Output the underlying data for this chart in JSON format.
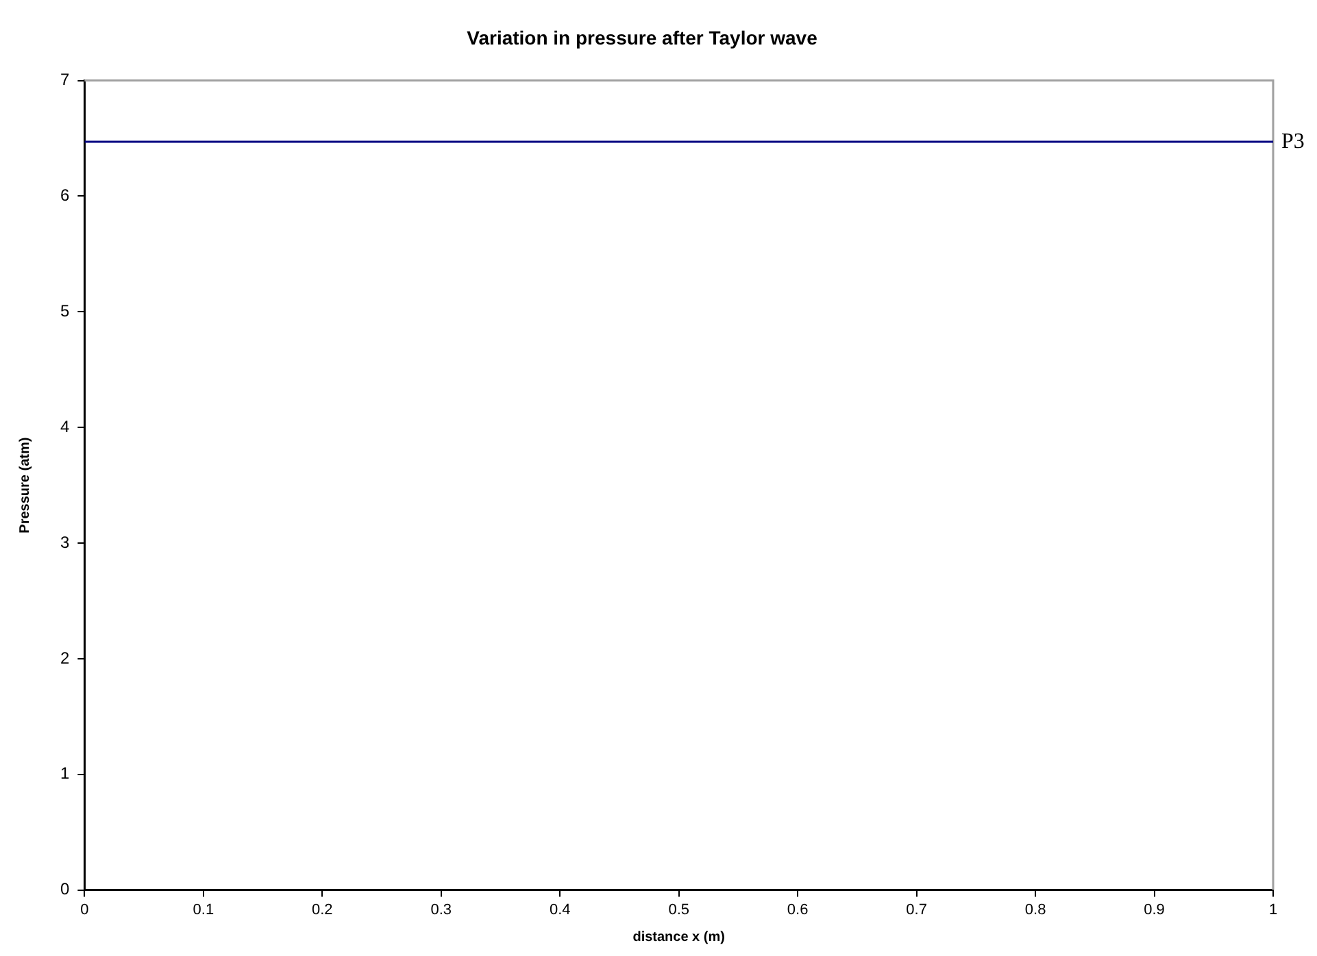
{
  "chart_data": {
    "type": "line",
    "title": "Variation in pressure after Taylor wave",
    "xlabel": "distance x (m)",
    "ylabel": "Pressure (atm)",
    "x": [
      0,
      1
    ],
    "series": [
      {
        "name": "P3",
        "color": "#000080",
        "values": [
          6.47,
          6.47
        ]
      }
    ],
    "xlim": [
      0,
      1
    ],
    "xticks": [
      0,
      0.1,
      0.2,
      0.3,
      0.4,
      0.5,
      0.6,
      0.7,
      0.8,
      0.9,
      1
    ],
    "ylim": [
      0,
      7
    ],
    "yticks": [
      0,
      1,
      2,
      3,
      4,
      5,
      6,
      7
    ],
    "grid": false,
    "legend": false,
    "marker": "none",
    "line_style": "solid"
  }
}
